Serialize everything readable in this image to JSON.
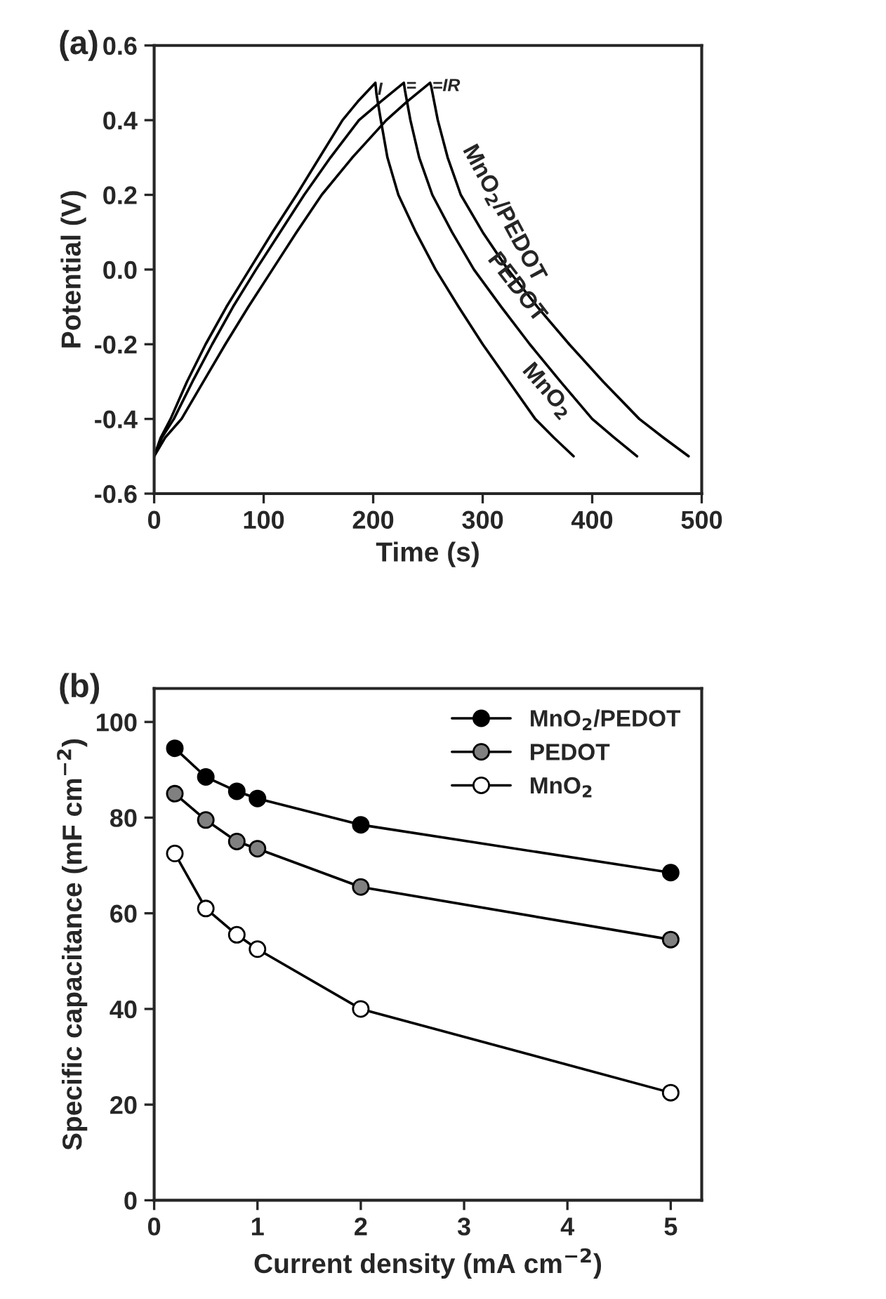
{
  "chart_data": [
    {
      "type": "line",
      "title": "(a)",
      "xlabel": "Time (s)",
      "ylabel": "Potential (V)",
      "xlim": [
        0,
        500
      ],
      "xticks": [
        0,
        100,
        200,
        300,
        400,
        500
      ],
      "ylim": [
        -0.6,
        0.6
      ],
      "yticks": [
        {
          "value": 0.6,
          "label": "0.6"
        },
        {
          "value": 0.4,
          "label": "0.4"
        },
        {
          "value": 0.2,
          "label": "0.2"
        },
        {
          "value": 0.0,
          "label": "0.0"
        },
        {
          "value": -0.2,
          "label": "-0.2"
        },
        {
          "value": -0.4,
          "label": "-0.4"
        },
        {
          "value": -0.6,
          "label": "-0.6"
        }
      ],
      "grid": false,
      "legend": false,
      "marker": "none",
      "line_style": "solid",
      "series": [
        {
          "name": "MnO$_{2}$",
          "color": "#000000",
          "x": [
            0,
            6,
            15,
            30,
            47,
            66,
            87,
            108,
            130,
            151,
            172,
            186,
            202,
            203,
            207,
            213,
            223,
            239,
            257,
            278,
            300,
            324,
            348,
            365,
            383
          ],
          "values": [
            -0.5,
            -0.45,
            -0.4,
            -0.3,
            -0.2,
            -0.1,
            0.0,
            0.1,
            0.2,
            0.3,
            0.4,
            0.45,
            0.5,
            0.47,
            0.4,
            0.3,
            0.2,
            0.1,
            0.0,
            -0.1,
            -0.2,
            -0.3,
            -0.4,
            -0.45,
            -0.5
          ]
        },
        {
          "name": "PEDOT",
          "color": "#000000",
          "x": [
            0,
            7,
            18,
            35,
            53,
            72,
            93,
            115,
            137,
            161,
            187,
            207,
            228,
            229,
            234,
            242,
            254,
            272,
            292,
            317,
            343,
            371,
            400,
            420,
            441
          ],
          "values": [
            -0.5,
            -0.45,
            -0.4,
            -0.3,
            -0.2,
            -0.1,
            0.0,
            0.1,
            0.2,
            0.3,
            0.4,
            0.45,
            0.5,
            0.48,
            0.4,
            0.3,
            0.2,
            0.1,
            0.0,
            -0.1,
            -0.2,
            -0.3,
            -0.4,
            -0.45,
            -0.5
          ]
        },
        {
          "name": "MnO$_{2}$/PEDOT",
          "color": "#000000",
          "x": [
            0,
            10,
            25,
            45,
            65,
            86,
            108,
            130,
            153,
            181,
            212,
            231,
            252,
            253,
            259,
            268,
            280,
            300,
            323,
            350,
            379,
            410,
            443,
            465,
            488
          ],
          "values": [
            -0.5,
            -0.45,
            -0.4,
            -0.3,
            -0.2,
            -0.1,
            0.0,
            0.1,
            0.2,
            0.3,
            0.4,
            0.45,
            0.5,
            0.49,
            0.4,
            0.3,
            0.2,
            0.1,
            0.0,
            -0.1,
            -0.2,
            -0.3,
            -0.4,
            -0.45,
            -0.5
          ]
        }
      ],
      "annotations": [
        {
          "text": "I",
          "x": 204,
          "y": 0.48
        },
        {
          "text": "=",
          "x": 230,
          "y": 0.49
        },
        {
          "text": "=IR",
          "x": 254,
          "y": 0.49
        }
      ]
    },
    {
      "type": "line",
      "title": "(b)",
      "xlabel": "Current density (mA cm$^{−2}$)",
      "ylabel": "Specific capacitance (mF cm$^{−2}$)",
      "xlim": [
        0,
        5.3
      ],
      "xticks": [
        0,
        1,
        2,
        3,
        4,
        5
      ],
      "ylim": [
        0,
        107
      ],
      "yticks": [
        0,
        20,
        40,
        60,
        80,
        100
      ],
      "grid": false,
      "legend": "top right",
      "marker": "circle",
      "line_style": "solid",
      "x": [
        0.2,
        0.5,
        0.8,
        1,
        2,
        5
      ],
      "series": [
        {
          "name": "MnO$_{2}$/PEDOT",
          "color": "#000000",
          "values": [
            94.5,
            88.5,
            85.5,
            84,
            78.5,
            68.5
          ]
        },
        {
          "name": "PEDOT",
          "color": "#808080",
          "values": [
            85,
            79.5,
            75,
            73.5,
            65.5,
            54.5
          ]
        },
        {
          "name": "MnO$_{2}$",
          "color": "#ffffff",
          "values": [
            72.5,
            61,
            55.5,
            52.5,
            40,
            22.5
          ]
        }
      ]
    }
  ]
}
